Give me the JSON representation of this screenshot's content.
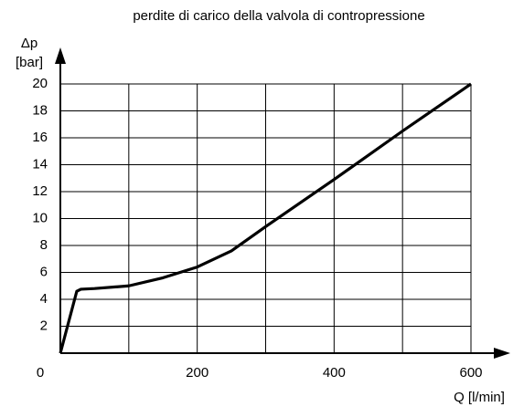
{
  "chart_data": {
    "type": "line",
    "title": "perdite di carico della valvola di contropressione",
    "ylabel": [
      "Δp",
      "[bar]"
    ],
    "xlabel": "Q [l/min]",
    "x": [
      0,
      24,
      30,
      50,
      100,
      150,
      200,
      250,
      300,
      400,
      500,
      600
    ],
    "series": [
      {
        "name": "Δp",
        "color": "#000000",
        "values": [
          0,
          4.6,
          4.75,
          4.8,
          5.0,
          5.6,
          6.4,
          7.6,
          9.4,
          12.9,
          16.5,
          20
        ]
      }
    ],
    "xlim": [
      0,
      600
    ],
    "xticks": [
      0,
      {
        "value": 100,
        "label": null
      },
      200,
      {
        "value": 300,
        "label": null
      },
      400,
      {
        "value": 500,
        "label": null
      },
      600
    ],
    "ylim": [
      0,
      20
    ],
    "yticks": [
      2,
      4,
      6,
      8,
      10,
      12,
      14,
      16,
      18,
      20
    ],
    "grid": true
  }
}
